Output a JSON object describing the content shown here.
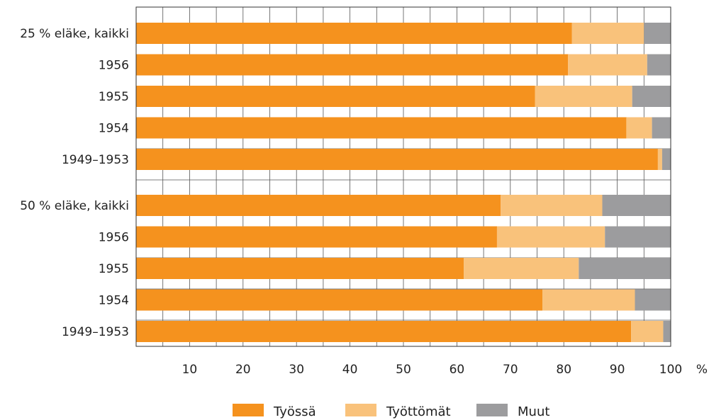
{
  "chart_data": {
    "type": "bar",
    "orientation": "horizontal",
    "stacked": true,
    "unit": "%",
    "xlim": [
      0,
      100
    ],
    "xticks": [
      10,
      20,
      30,
      40,
      50,
      60,
      70,
      80,
      90,
      100
    ],
    "grid": true,
    "legend_position": "bottom",
    "categories": [
      "25 % eläke, kaikki",
      "1956",
      "1955",
      "1954",
      "1949–1953",
      "50 % eläke, kaikki",
      "1956",
      "1955",
      "1954",
      "1949–1953"
    ],
    "series": [
      {
        "name": "Työssä",
        "color": "#f5921e",
        "values": [
          81.5,
          80.8,
          74.6,
          91.7,
          97.6,
          68.2,
          67.5,
          61.3,
          76.0,
          92.6
        ]
      },
      {
        "name": "Työttömät",
        "color": "#f9c27b",
        "values": [
          13.5,
          14.8,
          18.2,
          4.8,
          0.8,
          19.0,
          20.2,
          21.5,
          17.3,
          6.0
        ]
      },
      {
        "name": "Muut",
        "color": "#9c9c9e",
        "values": [
          5.0,
          4.4,
          7.2,
          3.5,
          1.6,
          12.8,
          12.3,
          17.2,
          6.7,
          1.4
        ]
      }
    ]
  }
}
